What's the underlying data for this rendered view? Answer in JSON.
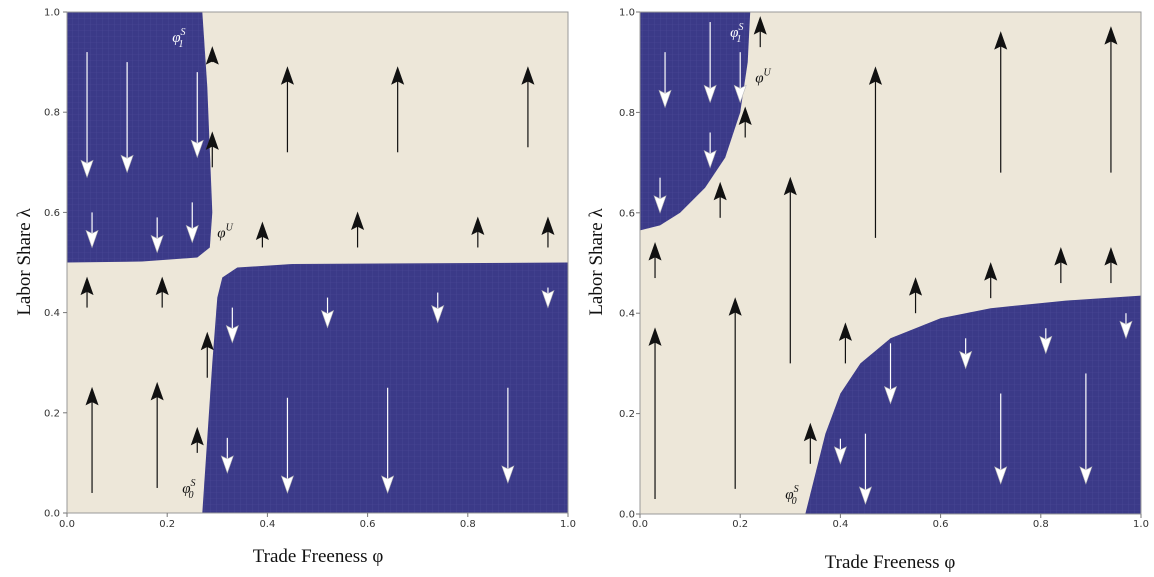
{
  "colors": {
    "background": "#ede7d9",
    "region": "#3b3a88",
    "region_grid": "#5a59a6",
    "arrow_up": "#111111",
    "arrow_down": "#ffffff"
  },
  "chart_data": [
    {
      "type": "vector-field",
      "xlabel": "Trade Freeness φ",
      "ylabel": "Labor Share λ",
      "xlim": [
        0,
        1
      ],
      "ylim": [
        0,
        1
      ],
      "x_ticks": [
        "0.0",
        "0.2",
        "0.4",
        "0.6",
        "0.8",
        "1.0"
      ],
      "y_ticks": [
        "0.0",
        "0.2",
        "0.4",
        "0.6",
        "0.8",
        "1.0"
      ],
      "regions": [
        {
          "name": "top-left-region",
          "points": [
            [
              0,
              1
            ],
            [
              0.27,
              1
            ],
            [
              0.28,
              0.85
            ],
            [
              0.29,
              0.6
            ],
            [
              0.285,
              0.53
            ],
            [
              0.26,
              0.51
            ],
            [
              0.15,
              0.502
            ],
            [
              0,
              0.5
            ]
          ]
        },
        {
          "name": "bottom-right-region",
          "points": [
            [
              0.27,
              0
            ],
            [
              1,
              0
            ],
            [
              1,
              0.5
            ],
            [
              0.45,
              0.497
            ],
            [
              0.34,
              0.49
            ],
            [
              0.31,
              0.47
            ],
            [
              0.3,
              0.43
            ],
            [
              0.29,
              0.3
            ],
            [
              0.28,
              0.15
            ]
          ]
        }
      ],
      "curve_labels": [
        {
          "text": "φ",
          "sub": "1",
          "sup": "S",
          "x": 0.21,
          "y": 0.94,
          "color": "#ffffff"
        },
        {
          "text": "φ",
          "sub": "",
          "sup": "U",
          "x": 0.3,
          "y": 0.55,
          "color": "#111111"
        },
        {
          "text": "φ",
          "sub": "0",
          "sup": "S",
          "x": 0.23,
          "y": 0.04,
          "color": "#111111"
        }
      ],
      "arrows_up": [
        {
          "x": 0.29,
          "y0": 0.9,
          "y1": 0.93
        },
        {
          "x": 0.29,
          "y0": 0.69,
          "y1": 0.76
        },
        {
          "x": 0.44,
          "y0": 0.72,
          "y1": 0.89
        },
        {
          "x": 0.66,
          "y0": 0.72,
          "y1": 0.89
        },
        {
          "x": 0.92,
          "y0": 0.73,
          "y1": 0.89
        },
        {
          "x": 0.39,
          "y0": 0.53,
          "y1": 0.58
        },
        {
          "x": 0.58,
          "y0": 0.53,
          "y1": 0.6
        },
        {
          "x": 0.82,
          "y0": 0.53,
          "y1": 0.59
        },
        {
          "x": 0.96,
          "y0": 0.53,
          "y1": 0.59
        },
        {
          "x": 0.04,
          "y0": 0.41,
          "y1": 0.47
        },
        {
          "x": 0.19,
          "y0": 0.41,
          "y1": 0.47
        },
        {
          "x": 0.28,
          "y0": 0.27,
          "y1": 0.36
        },
        {
          "x": 0.05,
          "y0": 0.04,
          "y1": 0.25
        },
        {
          "x": 0.18,
          "y0": 0.05,
          "y1": 0.26
        },
        {
          "x": 0.26,
          "y0": 0.12,
          "y1": 0.17
        }
      ],
      "arrows_down": [
        {
          "x": 0.04,
          "y0": 0.92,
          "y1": 0.67
        },
        {
          "x": 0.12,
          "y0": 0.9,
          "y1": 0.68
        },
        {
          "x": 0.26,
          "y0": 0.88,
          "y1": 0.71
        },
        {
          "x": 0.05,
          "y0": 0.6,
          "y1": 0.53
        },
        {
          "x": 0.18,
          "y0": 0.59,
          "y1": 0.52
        },
        {
          "x": 0.25,
          "y0": 0.62,
          "y1": 0.54
        },
        {
          "x": 0.33,
          "y0": 0.41,
          "y1": 0.34
        },
        {
          "x": 0.52,
          "y0": 0.43,
          "y1": 0.37
        },
        {
          "x": 0.74,
          "y0": 0.44,
          "y1": 0.38
        },
        {
          "x": 0.96,
          "y0": 0.45,
          "y1": 0.41
        },
        {
          "x": 0.32,
          "y0": 0.15,
          "y1": 0.08
        },
        {
          "x": 0.44,
          "y0": 0.23,
          "y1": 0.04
        },
        {
          "x": 0.64,
          "y0": 0.25,
          "y1": 0.04
        },
        {
          "x": 0.88,
          "y0": 0.25,
          "y1": 0.06
        }
      ]
    },
    {
      "type": "vector-field",
      "xlabel": "Trade Freeness φ",
      "ylabel": "Labor Share λ",
      "xlim": [
        0,
        1
      ],
      "ylim": [
        0,
        1
      ],
      "x_ticks": [
        "0.0",
        "0.2",
        "0.4",
        "0.6",
        "0.8",
        "1.0"
      ],
      "y_ticks": [
        "0.0",
        "0.2",
        "0.4",
        "0.6",
        "0.8",
        "1.0"
      ],
      "regions": [
        {
          "name": "top-left-region",
          "points": [
            [
              0,
              1
            ],
            [
              0.22,
              1
            ],
            [
              0.215,
              0.9
            ],
            [
              0.2,
              0.8
            ],
            [
              0.17,
              0.71
            ],
            [
              0.13,
              0.65
            ],
            [
              0.08,
              0.6
            ],
            [
              0.04,
              0.575
            ],
            [
              0,
              0.565
            ]
          ]
        },
        {
          "name": "bottom-right-region",
          "points": [
            [
              0.33,
              0
            ],
            [
              1,
              0
            ],
            [
              1,
              0.435
            ],
            [
              0.85,
              0.425
            ],
            [
              0.7,
              0.41
            ],
            [
              0.6,
              0.39
            ],
            [
              0.5,
              0.35
            ],
            [
              0.44,
              0.3
            ],
            [
              0.4,
              0.24
            ],
            [
              0.37,
              0.16
            ],
            [
              0.35,
              0.08
            ]
          ]
        }
      ],
      "curve_labels": [
        {
          "text": "φ",
          "sub": "1",
          "sup": "S",
          "x": 0.18,
          "y": 0.95,
          "color": "#ffffff"
        },
        {
          "text": "φ",
          "sub": "",
          "sup": "U",
          "x": 0.23,
          "y": 0.86,
          "color": "#111111"
        },
        {
          "text": "φ",
          "sub": "0",
          "sup": "S",
          "x": 0.29,
          "y": 0.03,
          "color": "#111111"
        }
      ],
      "arrows_up": [
        {
          "x": 0.24,
          "y0": 0.93,
          "y1": 0.99
        },
        {
          "x": 0.21,
          "y0": 0.75,
          "y1": 0.81
        },
        {
          "x": 0.47,
          "y0": 0.55,
          "y1": 0.89
        },
        {
          "x": 0.72,
          "y0": 0.68,
          "y1": 0.96
        },
        {
          "x": 0.94,
          "y0": 0.68,
          "y1": 0.97
        },
        {
          "x": 0.3,
          "y0": 0.3,
          "y1": 0.67
        },
        {
          "x": 0.16,
          "y0": 0.59,
          "y1": 0.66
        },
        {
          "x": 0.03,
          "y0": 0.47,
          "y1": 0.54
        },
        {
          "x": 0.55,
          "y0": 0.4,
          "y1": 0.47
        },
        {
          "x": 0.7,
          "y0": 0.43,
          "y1": 0.5
        },
        {
          "x": 0.84,
          "y0": 0.46,
          "y1": 0.53
        },
        {
          "x": 0.94,
          "y0": 0.46,
          "y1": 0.53
        },
        {
          "x": 0.41,
          "y0": 0.3,
          "y1": 0.38
        },
        {
          "x": 0.03,
          "y0": 0.03,
          "y1": 0.37
        },
        {
          "x": 0.19,
          "y0": 0.05,
          "y1": 0.43
        },
        {
          "x": 0.34,
          "y0": 0.1,
          "y1": 0.18
        }
      ],
      "arrows_down": [
        {
          "x": 0.05,
          "y0": 0.92,
          "y1": 0.81
        },
        {
          "x": 0.14,
          "y0": 0.98,
          "y1": 0.82
        },
        {
          "x": 0.2,
          "y0": 0.92,
          "y1": 0.82
        },
        {
          "x": 0.14,
          "y0": 0.76,
          "y1": 0.69
        },
        {
          "x": 0.04,
          "y0": 0.67,
          "y1": 0.6
        },
        {
          "x": 0.4,
          "y0": 0.15,
          "y1": 0.1
        },
        {
          "x": 0.45,
          "y0": 0.16,
          "y1": 0.02
        },
        {
          "x": 0.5,
          "y0": 0.34,
          "y1": 0.22
        },
        {
          "x": 0.65,
          "y0": 0.35,
          "y1": 0.29
        },
        {
          "x": 0.72,
          "y0": 0.24,
          "y1": 0.06
        },
        {
          "x": 0.81,
          "y0": 0.37,
          "y1": 0.32
        },
        {
          "x": 0.89,
          "y0": 0.28,
          "y1": 0.06
        },
        {
          "x": 0.97,
          "y0": 0.4,
          "y1": 0.35
        }
      ]
    }
  ]
}
